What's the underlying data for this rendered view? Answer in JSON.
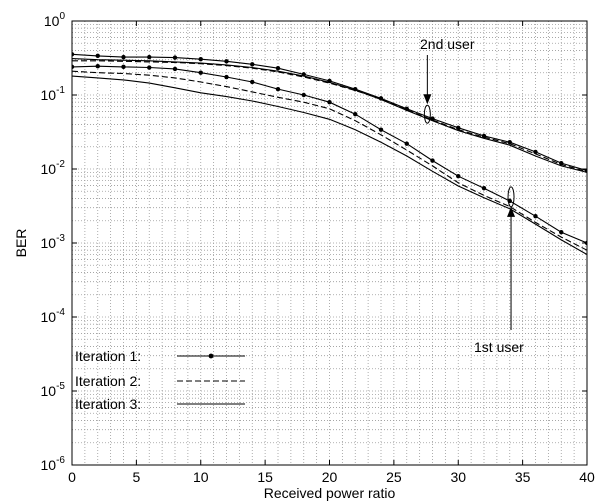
{
  "chart_data": {
    "type": "line",
    "xlabel": "Received power ratio",
    "ylabel": "BER",
    "xlim": [
      0,
      40
    ],
    "ylim": [
      1e-06,
      1
    ],
    "yscale": "log",
    "grid": "dotted",
    "x_ticks": [
      "0",
      "5",
      "10",
      "15",
      "20",
      "25",
      "30",
      "35",
      "40"
    ],
    "y_ticks": [
      {
        "base": "10",
        "exp": "-6"
      },
      {
        "base": "10",
        "exp": "-5"
      },
      {
        "base": "10",
        "exp": "-4"
      },
      {
        "base": "10",
        "exp": "-3"
      },
      {
        "base": "10",
        "exp": "-2"
      },
      {
        "base": "10",
        "exp": "-1"
      },
      {
        "base": "10",
        "exp": "0"
      }
    ],
    "x": [
      0,
      2,
      4,
      6,
      8,
      10,
      12,
      14,
      16,
      18,
      20,
      22,
      24,
      26,
      28,
      30,
      32,
      34,
      36,
      38,
      40
    ],
    "series": [
      {
        "group": "2nd user",
        "iteration": 1,
        "style": "dotted-marker",
        "values": [
          0.355,
          0.338,
          0.325,
          0.325,
          0.32,
          0.305,
          0.285,
          0.26,
          0.23,
          0.19,
          0.155,
          0.12,
          0.09,
          0.065,
          0.048,
          0.036,
          0.028,
          0.023,
          0.017,
          0.012,
          0.0095
        ]
      },
      {
        "group": "2nd user",
        "iteration": 2,
        "style": "dashed",
        "values": [
          0.29,
          0.29,
          0.285,
          0.28,
          0.275,
          0.265,
          0.25,
          0.23,
          0.205,
          0.175,
          0.145,
          0.115,
          0.088,
          0.063,
          0.046,
          0.034,
          0.027,
          0.022,
          0.016,
          0.0115,
          0.0092
        ]
      },
      {
        "group": "2nd user",
        "iteration": 3,
        "style": "solid",
        "values": [
          0.31,
          0.3,
          0.295,
          0.29,
          0.28,
          0.27,
          0.255,
          0.235,
          0.21,
          0.18,
          0.148,
          0.117,
          0.087,
          0.062,
          0.045,
          0.033,
          0.026,
          0.021,
          0.015,
          0.011,
          0.009
        ]
      },
      {
        "group": "1st user",
        "iteration": 1,
        "style": "dotted-marker",
        "values": [
          0.24,
          0.245,
          0.24,
          0.235,
          0.225,
          0.2,
          0.175,
          0.15,
          0.12,
          0.1,
          0.08,
          0.055,
          0.034,
          0.022,
          0.013,
          0.008,
          0.0055,
          0.0037,
          0.0023,
          0.0014,
          0.001
        ]
      },
      {
        "group": "1st user",
        "iteration": 2,
        "style": "dashed",
        "values": [
          0.21,
          0.2,
          0.195,
          0.185,
          0.17,
          0.15,
          0.13,
          0.11,
          0.093,
          0.08,
          0.065,
          0.045,
          0.029,
          0.018,
          0.011,
          0.0065,
          0.0044,
          0.0031,
          0.0019,
          0.0012,
          0.0008
        ]
      },
      {
        "group": "1st user",
        "iteration": 3,
        "style": "solid",
        "values": [
          0.18,
          0.17,
          0.16,
          0.145,
          0.125,
          0.107,
          0.095,
          0.083,
          0.07,
          0.058,
          0.047,
          0.034,
          0.023,
          0.015,
          0.0093,
          0.0059,
          0.0041,
          0.0029,
          0.0018,
          0.0011,
          0.0007
        ]
      }
    ],
    "annotations": [
      {
        "text": "2nd user"
      },
      {
        "text": "1st user"
      }
    ],
    "legend": {
      "placement": "bottom-left",
      "entries": [
        {
          "label": "Iteration 1:",
          "style": "dotted-marker"
        },
        {
          "label": "Iteration 2:",
          "style": "dashed"
        },
        {
          "label": "Iteration 3:",
          "style": "solid"
        }
      ]
    }
  }
}
